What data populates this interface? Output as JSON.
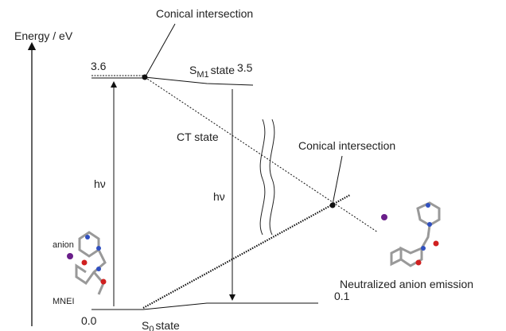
{
  "axis_label": "Energy / eV",
  "conical_intersections": [
    "Conical intersection",
    "Conical intersection"
  ],
  "levels": {
    "top_left": "3.6",
    "top_right": "3.5",
    "bottom_left": "0.0",
    "bottom_right": "0.1"
  },
  "states": {
    "sm1": {
      "symbol": "S",
      "subscript": "M1",
      "suffix": "state"
    },
    "ct": "CT state",
    "s0": {
      "symbol": "S",
      "subscript": "0",
      "suffix": "state"
    }
  },
  "excitation": "hν",
  "emission": "hν",
  "molecules": {
    "left_anion": "anion",
    "left_name": "MNEI",
    "right_caption": "Neutralized anion emission"
  }
}
